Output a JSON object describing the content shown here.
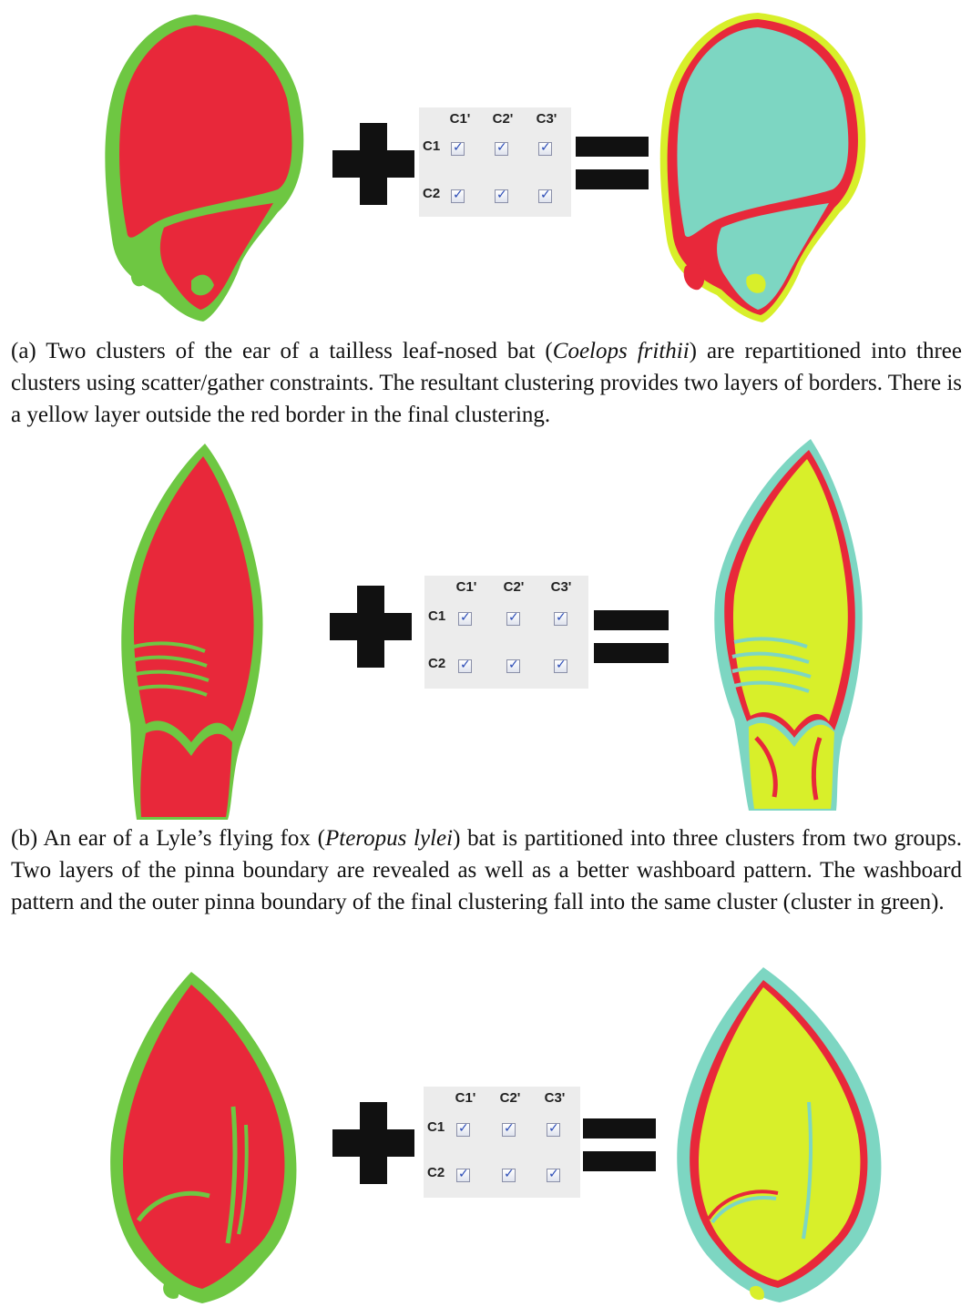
{
  "grid": {
    "columns": [
      "C1'",
      "C2'",
      "C3'"
    ],
    "rows": [
      "C1",
      "C2"
    ],
    "check_glyph": "✓"
  },
  "colors": {
    "red": "#e8283a",
    "green": "#6ec742",
    "cyan": "#7dd6c2",
    "yellow": "#d8ef2a",
    "symbol": "#111111",
    "grid_bg": "#ececec"
  },
  "captions": {
    "a": {
      "prefix": "(a) Two clusters of the ear of a tailless leaf-nosed bat (",
      "species": "Coelops frithii",
      "suffix": ") are repartitioned into three clusters using scatter/gather constraints. The resultant clustering provides two layers of borders. There is a yellow layer outside the red border in the final clustering."
    },
    "b": {
      "prefix": "(b) An ear of a Lyle’s flying fox (",
      "species": "Pteropus lylei",
      "suffix": ") bat is partitioned into three clusters from two groups. Two layers of the pinna boundary are revealed as well as a better washboard pattern. The washboard pattern and the outer pinna boundary of the final clustering fall into the same cluster (cluster in green)."
    }
  }
}
